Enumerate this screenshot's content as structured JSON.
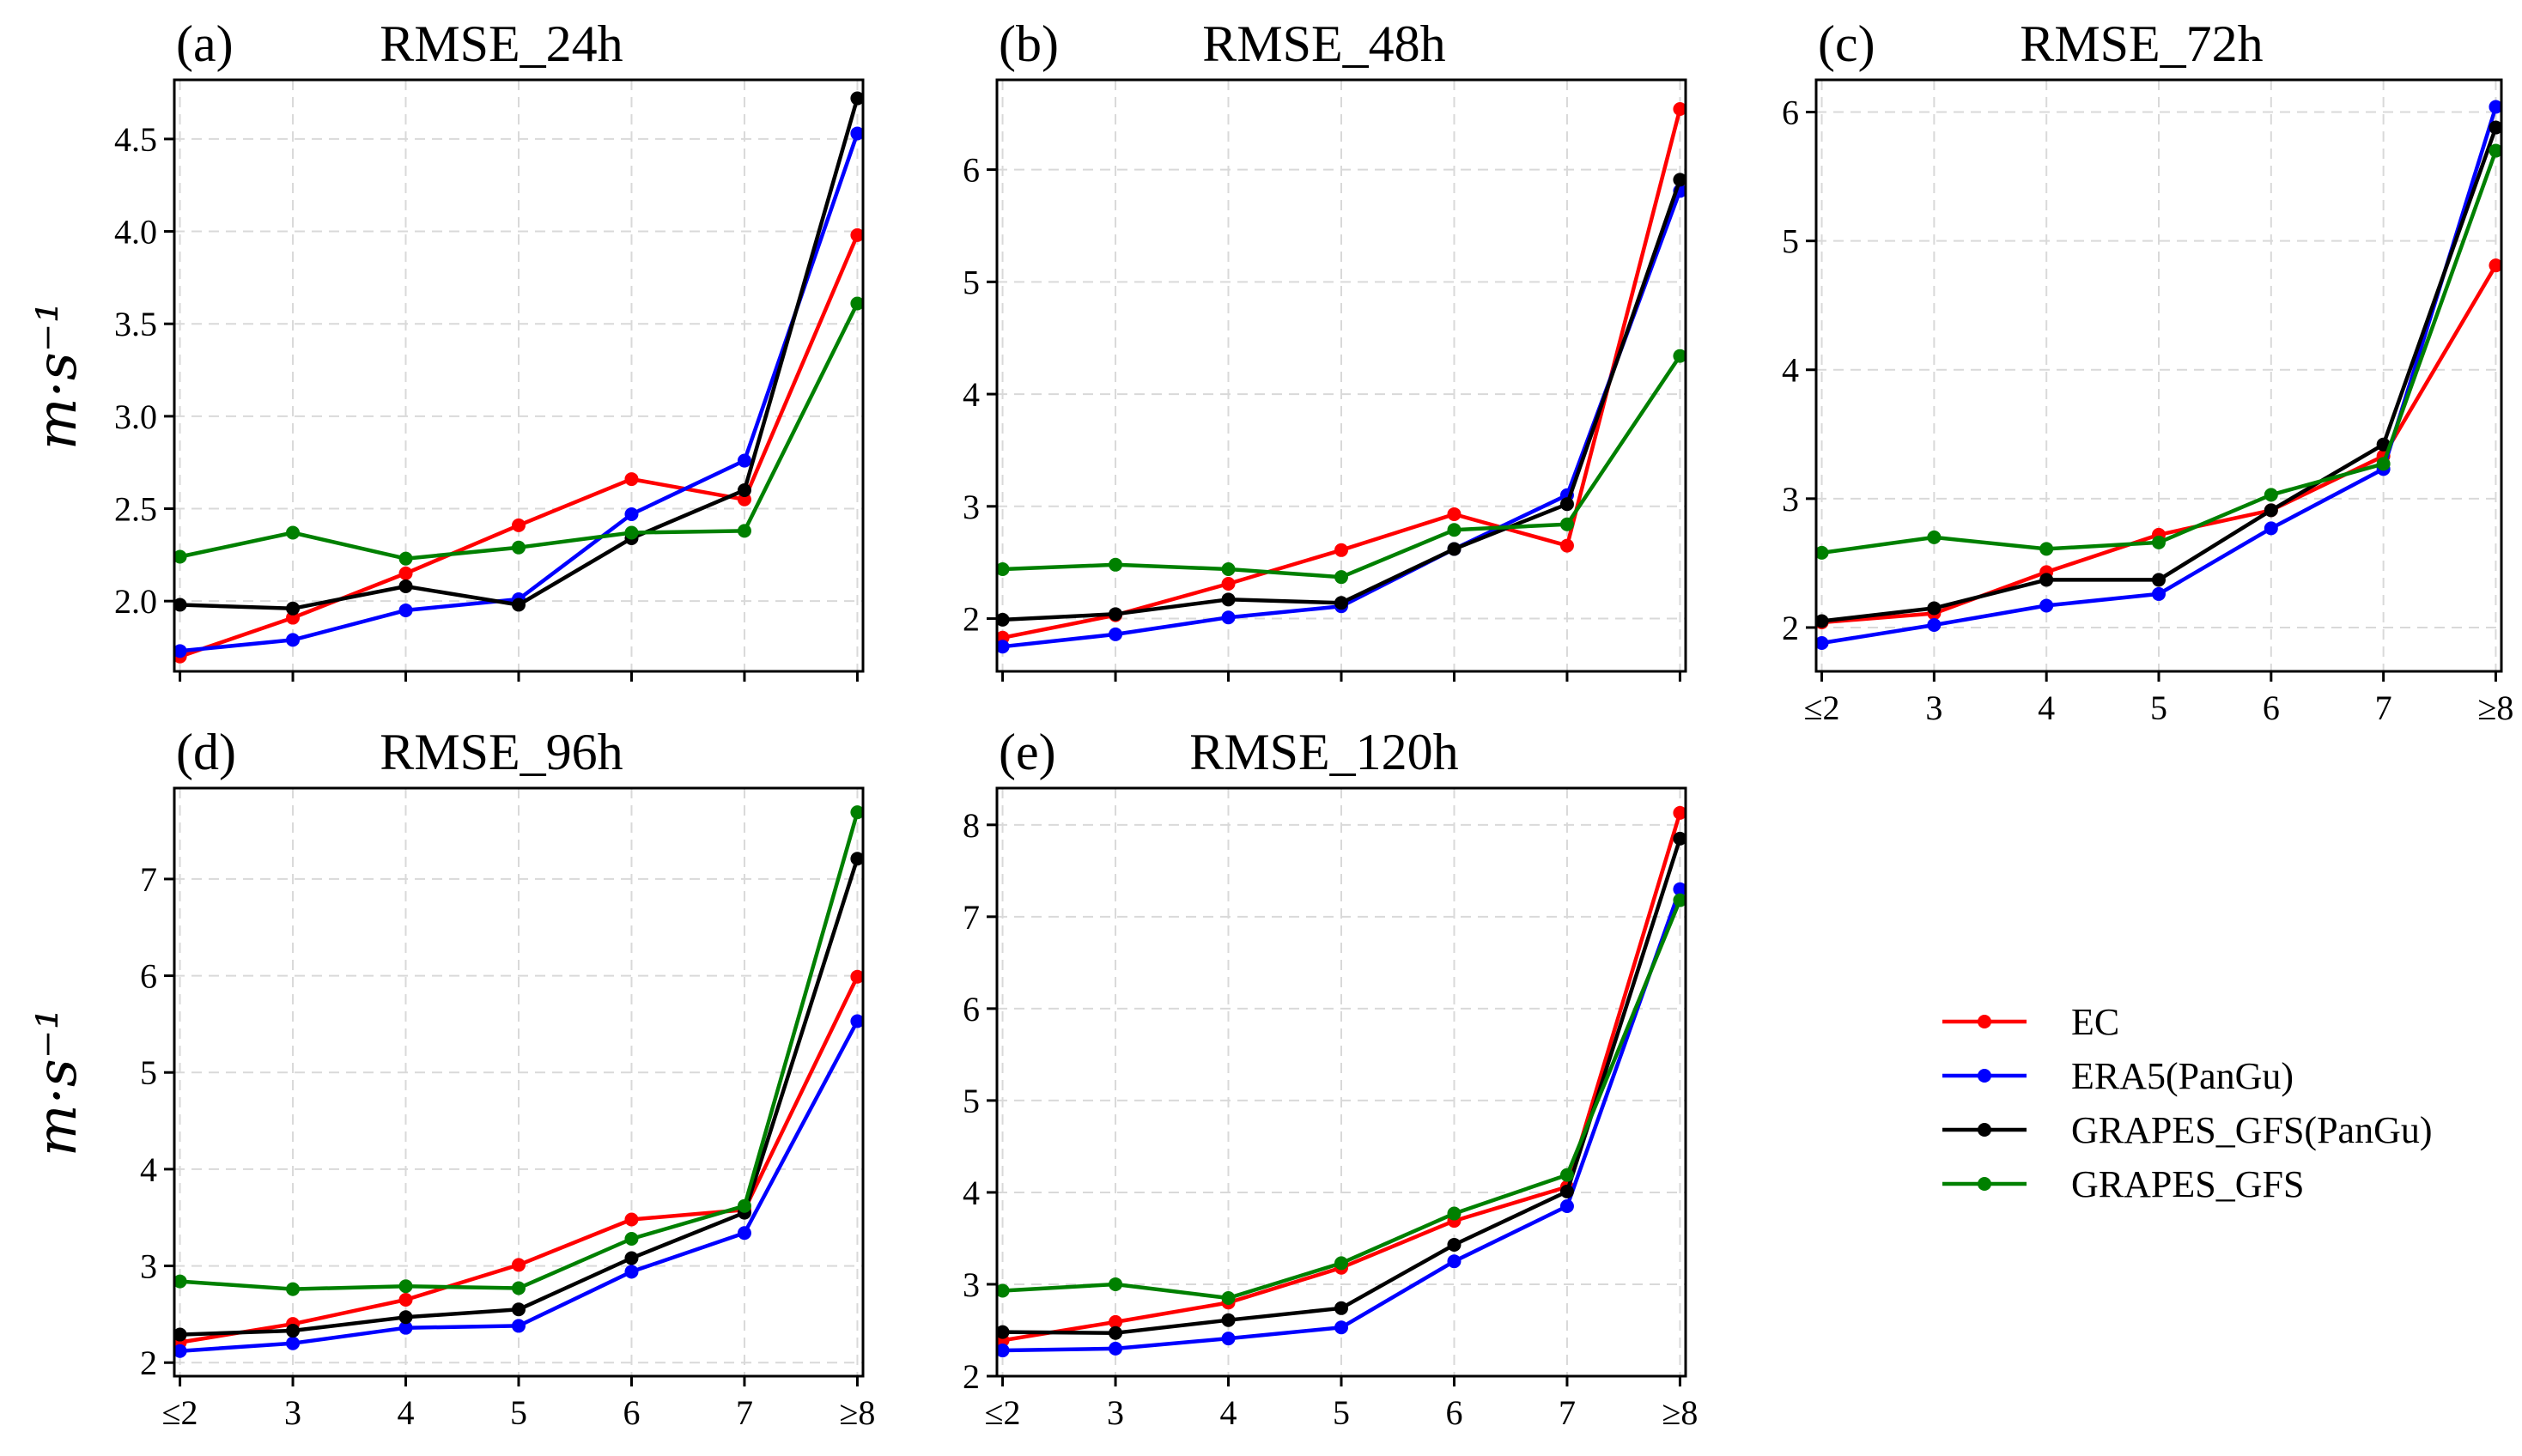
{
  "chart_data": [
    {
      "type": "line",
      "panel_label": "(a)",
      "title": "RMSE_24h",
      "ylabel": "m·s⁻¹",
      "ylim": [
        1.62,
        4.82
      ],
      "yticks": [
        "2.0",
        "2.5",
        "3.0",
        "3.5",
        "4.0",
        "4.5"
      ],
      "ytick_values": [
        2.0,
        2.5,
        3.0,
        3.5,
        4.0,
        4.5
      ],
      "categories": [
        "≤2",
        "3",
        "4",
        "5",
        "6",
        "7",
        "≥8"
      ],
      "show_xticklabels": false,
      "grid": true,
      "series": [
        {
          "name": "EC",
          "values": [
            1.7,
            1.91,
            2.15,
            2.41,
            2.66,
            2.55,
            3.98
          ]
        },
        {
          "name": "ERA5(PanGu)",
          "values": [
            1.73,
            1.79,
            1.95,
            2.01,
            2.47,
            2.76,
            4.53
          ]
        },
        {
          "name": "GRAPES_GFS(PanGu)",
          "values": [
            1.98,
            1.96,
            2.08,
            1.98,
            2.34,
            2.6,
            4.72
          ]
        },
        {
          "name": "GRAPES_GFS",
          "values": [
            2.24,
            2.37,
            2.23,
            2.29,
            2.37,
            2.38,
            3.61
          ]
        }
      ]
    },
    {
      "type": "line",
      "panel_label": "(b)",
      "title": "RMSE_48h",
      "ylabel": "",
      "ylim": [
        1.53,
        6.8
      ],
      "yticks": [
        "2",
        "3",
        "4",
        "5",
        "6"
      ],
      "ytick_values": [
        2,
        3,
        4,
        5,
        6
      ],
      "categories": [
        "≤2",
        "3",
        "4",
        "5",
        "6",
        "7",
        "≥8"
      ],
      "show_xticklabels": false,
      "grid": true,
      "series": [
        {
          "name": "EC",
          "values": [
            1.83,
            2.03,
            2.31,
            2.61,
            2.93,
            2.65,
            6.54
          ]
        },
        {
          "name": "ERA5(PanGu)",
          "values": [
            1.75,
            1.86,
            2.01,
            2.11,
            2.62,
            3.1,
            5.81
          ]
        },
        {
          "name": "GRAPES_GFS(PanGu)",
          "values": [
            1.99,
            2.04,
            2.17,
            2.14,
            2.62,
            3.02,
            5.91
          ]
        },
        {
          "name": "GRAPES_GFS",
          "values": [
            2.44,
            2.48,
            2.44,
            2.37,
            2.79,
            2.84,
            4.34
          ]
        }
      ]
    },
    {
      "type": "line",
      "panel_label": "(c)",
      "title": "RMSE_72h",
      "ylabel": "",
      "ylim": [
        1.66,
        6.25
      ],
      "yticks": [
        "2",
        "3",
        "4",
        "5",
        "6"
      ],
      "ytick_values": [
        2,
        3,
        4,
        5,
        6
      ],
      "categories": [
        "≤2",
        "3",
        "4",
        "5",
        "6",
        "7",
        "≥8"
      ],
      "show_xticklabels": true,
      "grid": true,
      "series": [
        {
          "name": "EC",
          "values": [
            2.04,
            2.11,
            2.43,
            2.72,
            2.91,
            3.33,
            4.81
          ]
        },
        {
          "name": "ERA5(PanGu)",
          "values": [
            1.88,
            2.02,
            2.17,
            2.26,
            2.77,
            3.23,
            6.04
          ]
        },
        {
          "name": "GRAPES_GFS(PanGu)",
          "values": [
            2.05,
            2.15,
            2.37,
            2.37,
            2.91,
            3.42,
            5.88
          ]
        },
        {
          "name": "GRAPES_GFS",
          "values": [
            2.58,
            2.7,
            2.61,
            2.66,
            3.03,
            3.27,
            5.7
          ]
        }
      ]
    },
    {
      "type": "line",
      "panel_label": "(d)",
      "title": "RMSE_96h",
      "ylabel": "m·s⁻¹",
      "ylim": [
        1.86,
        7.94
      ],
      "yticks": [
        "2",
        "3",
        "4",
        "5",
        "6",
        "7"
      ],
      "ytick_values": [
        2,
        3,
        4,
        5,
        6,
        7
      ],
      "categories": [
        "≤2",
        "3",
        "4",
        "5",
        "6",
        "7",
        "≥8"
      ],
      "show_xticklabels": true,
      "grid": true,
      "series": [
        {
          "name": "EC",
          "values": [
            2.21,
            2.4,
            2.65,
            3.01,
            3.48,
            3.58,
            5.99
          ]
        },
        {
          "name": "ERA5(PanGu)",
          "values": [
            2.12,
            2.2,
            2.36,
            2.38,
            2.94,
            3.34,
            5.53
          ]
        },
        {
          "name": "GRAPES_GFS(PanGu)",
          "values": [
            2.29,
            2.33,
            2.47,
            2.55,
            3.08,
            3.55,
            7.21
          ]
        },
        {
          "name": "GRAPES_GFS",
          "values": [
            2.84,
            2.76,
            2.79,
            2.77,
            3.28,
            3.62,
            7.69
          ]
        }
      ]
    },
    {
      "type": "line",
      "panel_label": "(e)",
      "title": "RMSE_120h",
      "ylabel": "",
      "ylim": [
        2.0,
        8.4
      ],
      "yticks": [
        "2",
        "3",
        "4",
        "5",
        "6",
        "7",
        "8"
      ],
      "ytick_values": [
        2,
        3,
        4,
        5,
        6,
        7,
        8
      ],
      "categories": [
        "≤2",
        "3",
        "4",
        "5",
        "6",
        "7",
        "≥8"
      ],
      "show_xticklabels": true,
      "grid": true,
      "series": [
        {
          "name": "EC",
          "values": [
            2.39,
            2.59,
            2.8,
            3.18,
            3.69,
            4.06,
            8.13
          ]
        },
        {
          "name": "ERA5(PanGu)",
          "values": [
            2.28,
            2.3,
            2.41,
            2.53,
            3.25,
            3.85,
            7.3
          ]
        },
        {
          "name": "GRAPES_GFS(PanGu)",
          "values": [
            2.48,
            2.47,
            2.61,
            2.74,
            3.43,
            4.01,
            7.85
          ]
        },
        {
          "name": "GRAPES_GFS",
          "values": [
            2.93,
            3.0,
            2.85,
            3.23,
            3.77,
            4.19,
            7.18
          ]
        }
      ]
    }
  ],
  "legend": {
    "placement": "right",
    "entries": [
      {
        "name": "EC",
        "color": "#ff0000"
      },
      {
        "name": "ERA5(PanGu)",
        "color": "#0000ff"
      },
      {
        "name": "GRAPES_GFS(PanGu)",
        "color": "#000000"
      },
      {
        "name": "GRAPES_GFS",
        "color": "#008000"
      }
    ]
  },
  "colors": {
    "EC": "#ff0000",
    "ERA5(PanGu)": "#0000ff",
    "GRAPES_GFS(PanGu)": "#000000",
    "GRAPES_GFS": "#008000",
    "grid": "#d9d9d9"
  }
}
